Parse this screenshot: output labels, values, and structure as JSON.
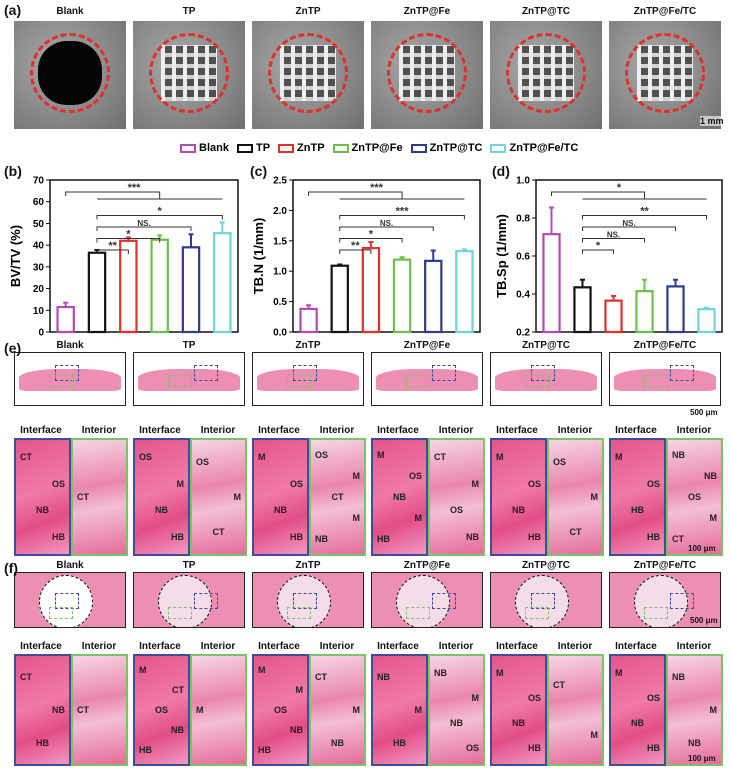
{
  "panels": {
    "a": "(a)",
    "b": "(b)",
    "c": "(c)",
    "d": "(d)",
    "e": "(e)",
    "f": "(f)"
  },
  "groups": [
    "Blank",
    "TP",
    "ZnTP",
    "ZnTP@Fe",
    "ZnTP@TC",
    "ZnTP@Fe/TC"
  ],
  "colors": [
    "#b44bb4",
    "#111111",
    "#e0302a",
    "#6cc04a",
    "#2e3a8c",
    "#6fd3e0"
  ],
  "scale_bars": {
    "a": "1 mm",
    "e_overview": "500 μm",
    "e_detail": "100 μm",
    "f_overview": "500 μm",
    "f_detail": "100 μm"
  },
  "sub_labels": {
    "interface": "Interface",
    "interior": "Interior"
  },
  "histology": {
    "e": [
      [
        [
          "CT",
          "OS",
          "NB",
          "HB"
        ],
        [
          "CT"
        ]
      ],
      [
        [
          "OS",
          "M",
          "NB",
          "HB"
        ],
        [
          "OS",
          "M",
          "CT"
        ]
      ],
      [
        [
          "M",
          "OS",
          "NB",
          "HB"
        ],
        [
          "OS",
          "M",
          "CT",
          "M",
          "NB"
        ]
      ],
      [
        [
          "M",
          "OS",
          "NB",
          "M",
          "HB"
        ],
        [
          "CT",
          "M",
          "OS",
          "NB"
        ]
      ],
      [
        [
          "M",
          "OS",
          "NB",
          "HB"
        ],
        [
          "OS",
          "M",
          "CT"
        ]
      ],
      [
        [
          "M",
          "OS",
          "HB",
          "HB"
        ],
        [
          "NB",
          "NB",
          "OS",
          "M",
          "CT"
        ]
      ]
    ],
    "f": [
      [
        [
          "CT",
          "NB",
          "HB"
        ],
        [
          "CT"
        ]
      ],
      [
        [
          "M",
          "CT",
          "OS",
          "NB",
          "HB"
        ],
        [
          "M"
        ]
      ],
      [
        [
          "M",
          "M",
          "OS",
          "NB",
          "HB"
        ],
        [
          "CT",
          "M",
          "NB"
        ]
      ],
      [
        [
          "NB",
          "M",
          "HB"
        ],
        [
          "NB",
          "M",
          "NB",
          "OS"
        ]
      ],
      [
        [
          "M",
          "OS",
          "NB",
          "HB"
        ],
        [
          "CT",
          "M"
        ]
      ],
      [
        [
          "M",
          "OS",
          "NB",
          "HB"
        ],
        [
          "NB",
          "M",
          "NB"
        ]
      ]
    ]
  },
  "chart_data": [
    {
      "type": "bar",
      "ylabel": "BV/TV (%)",
      "ylim": [
        0,
        70
      ],
      "yticks": [
        0,
        10,
        20,
        30,
        40,
        50,
        60,
        70
      ],
      "categories": [
        "Blank",
        "TP",
        "ZnTP",
        "ZnTP@Fe",
        "ZnTP@TC",
        "ZnTP@Fe/TC"
      ],
      "values": [
        11.5,
        36.5,
        42,
        42.5,
        39,
        45.5
      ],
      "errors": [
        2,
        1.3,
        1.5,
        2,
        6,
        5
      ],
      "significance": [
        {
          "from": 0,
          "to": 5,
          "label": "***"
        },
        {
          "from": 1,
          "to": 5,
          "label": "*"
        },
        {
          "from": 1,
          "to": 4,
          "label": "NS."
        },
        {
          "from": 1,
          "to": 3,
          "label": "*"
        },
        {
          "from": 1,
          "to": 2,
          "label": "**"
        }
      ]
    },
    {
      "type": "bar",
      "ylabel": "TB.N (1/mm)",
      "ylim": [
        0,
        2.5
      ],
      "yticks": [
        "0.0",
        "0.5",
        "1.0",
        "1.5",
        "2.0",
        "2.5"
      ],
      "categories": [
        "Blank",
        "TP",
        "ZnTP",
        "ZnTP@Fe",
        "ZnTP@TC",
        "ZnTP@Fe/TC"
      ],
      "values": [
        0.38,
        1.09,
        1.38,
        1.19,
        1.17,
        1.33
      ],
      "errors": [
        0.06,
        0.02,
        0.1,
        0.04,
        0.17,
        0.03
      ],
      "significance": [
        {
          "from": 0,
          "to": 5,
          "label": "***"
        },
        {
          "from": 1,
          "to": 5,
          "label": "***"
        },
        {
          "from": 1,
          "to": 4,
          "label": "NS."
        },
        {
          "from": 1,
          "to": 3,
          "label": "*"
        },
        {
          "from": 1,
          "to": 2,
          "label": "**"
        }
      ]
    },
    {
      "type": "bar",
      "ylabel": "TB.Sp (1/mm)",
      "ylim": [
        0.2,
        1.0
      ],
      "yticks": [
        "0.2",
        "0.4",
        "0.6",
        "0.8",
        "1.0"
      ],
      "categories": [
        "Blank",
        "TP",
        "ZnTP",
        "ZnTP@Fe",
        "ZnTP@TC",
        "ZnTP@Fe/TC"
      ],
      "values": [
        0.715,
        0.435,
        0.365,
        0.415,
        0.44,
        0.32
      ],
      "errors": [
        0.14,
        0.04,
        0.025,
        0.06,
        0.035,
        0.008
      ],
      "significance": [
        {
          "from": 0,
          "to": 5,
          "label": "*"
        },
        {
          "from": 1,
          "to": 5,
          "label": "**"
        },
        {
          "from": 1,
          "to": 4,
          "label": "NS."
        },
        {
          "from": 1,
          "to": 3,
          "label": "NS."
        },
        {
          "from": 1,
          "to": 2,
          "label": "*"
        }
      ]
    }
  ]
}
